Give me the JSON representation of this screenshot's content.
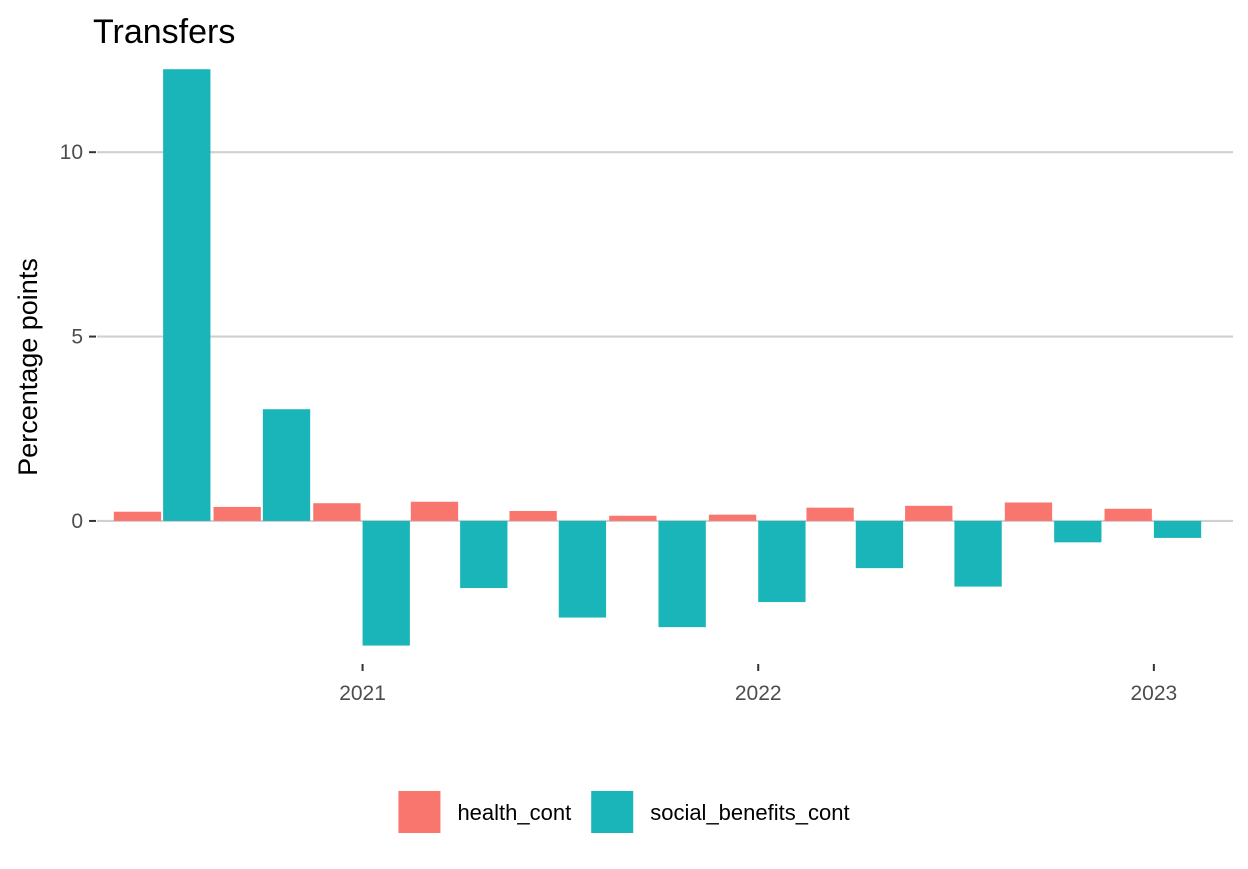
{
  "chart_data": {
    "type": "bar",
    "title": "Transfers",
    "xlabel": "",
    "ylabel": "Percentage points",
    "x_axis": {
      "type": "date",
      "range": [
        "2020-05-01",
        "2023-03-15"
      ],
      "ticks": [
        "2021-01-01",
        "2022-01-01",
        "2023-01-01"
      ],
      "tick_labels": [
        "2021",
        "2022",
        "2023"
      ]
    },
    "y_axis": {
      "range": [
        -3.5,
        12.5
      ],
      "ticks": [
        0,
        5,
        10
      ],
      "tick_labels": [
        "0",
        "5",
        "10"
      ]
    },
    "grid": "horizontal-major",
    "legend_position": "bottom",
    "periods": [
      "2020-07-01",
      "2020-10-01",
      "2021-01-01",
      "2021-04-01",
      "2021-07-01",
      "2021-10-01",
      "2022-01-01",
      "2022-04-01",
      "2022-07-01",
      "2022-10-01",
      "2023-01-01"
    ],
    "series": [
      {
        "name": "health_cont",
        "color": "#F8766D",
        "values": [
          0.25,
          0.38,
          0.48,
          0.52,
          0.27,
          0.14,
          0.17,
          0.36,
          0.41,
          0.5,
          0.33
        ]
      },
      {
        "name": "social_benefits_cont",
        "color": "#1AB5B8",
        "values": [
          12.25,
          3.03,
          -3.38,
          -1.82,
          -2.62,
          -2.88,
          -2.2,
          -1.28,
          -1.78,
          -0.58,
          -0.46
        ]
      }
    ]
  }
}
